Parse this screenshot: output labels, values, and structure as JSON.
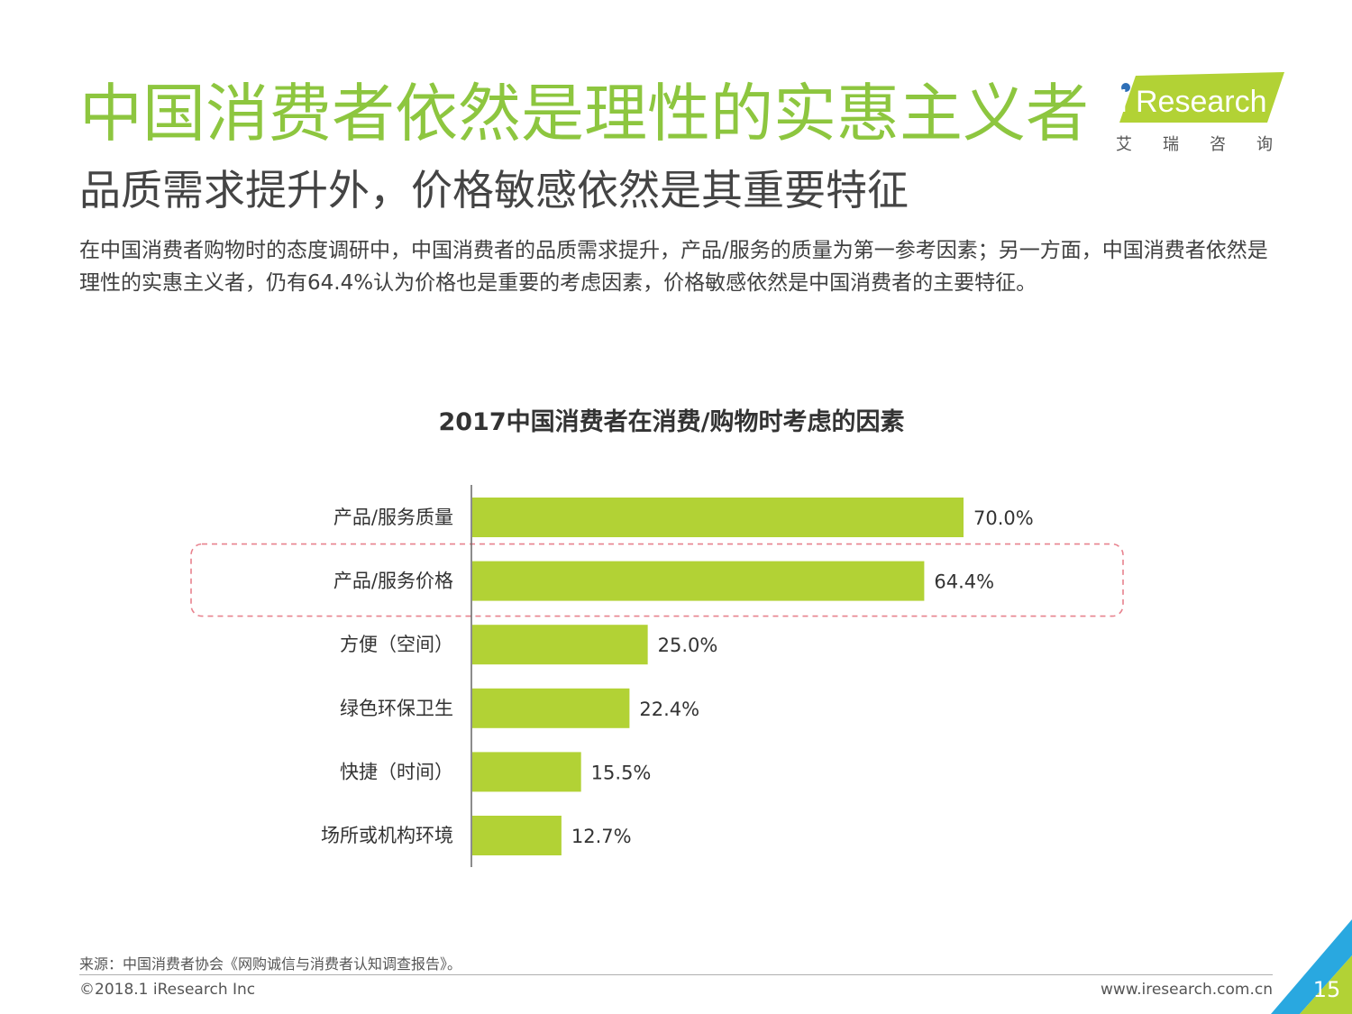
{
  "header": {
    "title": "中国消费者依然是理性的实惠主义者",
    "subtitle": "品质需求提升外，价格敏感依然是其重要特征",
    "description": "在中国消费者购物时的态度调研中，中国消费者的品质需求提升，产品/服务的质量为第一参考因素；另一方面，中国消费者依然是理性的实惠主义者，仍有64.4%认为价格也是重要的考虑因素，价格敏感依然是中国消费者的主要特征。"
  },
  "logo": {
    "brand_prefix": "i",
    "brand_rest": "Research",
    "chinese_name": "艾瑞咨询"
  },
  "colors": {
    "brand_green": "#8dc63f",
    "bar": "#b2d235",
    "highlight_border": "#e8828e",
    "logo_dot": "#2e6fb7",
    "corner_blue": "#29a8e0"
  },
  "chart_data": {
    "type": "bar",
    "orientation": "horizontal",
    "title": "2017中国消费者在消费/购物时考虑的因素",
    "categories": [
      "产品/服务质量",
      "产品/服务价格",
      "方便（空间）",
      "绿色环保卫生",
      "快捷（时间）",
      "场所或机构环境"
    ],
    "values": [
      70.0,
      64.4,
      25.0,
      22.4,
      15.5,
      12.7
    ],
    "value_labels": [
      "70.0%",
      "64.4%",
      "25.0%",
      "22.4%",
      "15.5%",
      "12.7%"
    ],
    "unit": "%",
    "xlim": [
      0,
      100
    ],
    "grid": false,
    "legend": "none",
    "highlighted_category": "产品/服务价格"
  },
  "footer": {
    "source": "来源：中国消费者协会《网购诚信与消费者认知调查报告》。",
    "copyright": "©2018.1 iResearch Inc",
    "url": "www.iresearch.com.cn",
    "page_number": "15"
  }
}
